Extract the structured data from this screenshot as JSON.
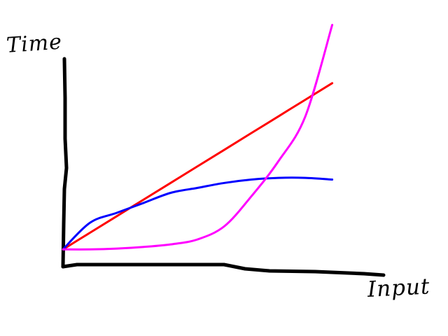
{
  "chart_data": {
    "type": "line",
    "title": "",
    "xlabel": "Input",
    "ylabel": "Time",
    "grid": false,
    "legend": "none",
    "x": [
      0,
      1,
      2,
      3,
      4,
      5,
      6,
      7,
      8,
      9,
      10
    ],
    "series": [
      {
        "color": "#ff0000",
        "values": [
          1.0,
          2.0,
          3.0,
          4.0,
          5.0,
          6.0,
          7.0,
          8.0,
          9.0,
          10.0,
          11.0
        ]
      },
      {
        "color": "#0000ff",
        "values": [
          1.0,
          2.6,
          3.2,
          3.8,
          4.4,
          4.7,
          5.0,
          5.2,
          5.3,
          5.3,
          5.2
        ]
      },
      {
        "color": "#ff00ff",
        "values": [
          1.0,
          1.0,
          1.05,
          1.15,
          1.3,
          1.6,
          2.4,
          4.2,
          6.3,
          9.0,
          14.5
        ]
      }
    ],
    "xlim": [
      0,
      13
    ],
    "ylim": [
      0,
      16
    ]
  }
}
